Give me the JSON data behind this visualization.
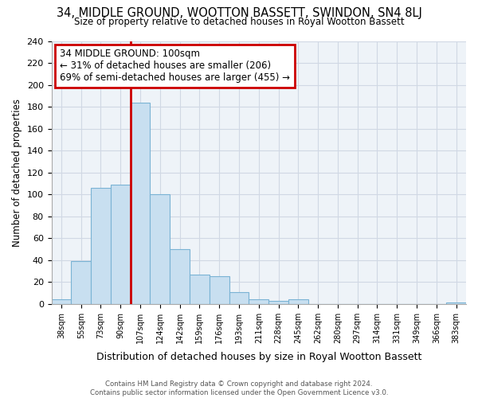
{
  "title": "34, MIDDLE GROUND, WOOTTON BASSETT, SWINDON, SN4 8LJ",
  "subtitle": "Size of property relative to detached houses in Royal Wootton Bassett",
  "xlabel": "Distribution of detached houses by size in Royal Wootton Bassett",
  "ylabel": "Number of detached properties",
  "categories": [
    "38sqm",
    "55sqm",
    "73sqm",
    "90sqm",
    "107sqm",
    "124sqm",
    "142sqm",
    "159sqm",
    "176sqm",
    "193sqm",
    "211sqm",
    "228sqm",
    "245sqm",
    "262sqm",
    "280sqm",
    "297sqm",
    "314sqm",
    "331sqm",
    "349sqm",
    "366sqm",
    "383sqm"
  ],
  "values": [
    4,
    39,
    106,
    109,
    184,
    100,
    50,
    27,
    25,
    11,
    4,
    3,
    4,
    0,
    0,
    0,
    0,
    0,
    0,
    0,
    1
  ],
  "bar_color": "#c8dff0",
  "bar_edge_color": "#7ab3d4",
  "annotation_box_text_line1": "34 MIDDLE GROUND: 100sqm",
  "annotation_box_text_line2": "← 31% of detached houses are smaller (206)",
  "annotation_box_text_line3": "69% of semi-detached houses are larger (455) →",
  "annotation_box_color": "#ffffff",
  "annotation_box_edge_color": "#cc0000",
  "vline_color": "#cc0000",
  "vline_x": 3.5,
  "ylim": [
    0,
    240
  ],
  "yticks": [
    0,
    20,
    40,
    60,
    80,
    100,
    120,
    140,
    160,
    180,
    200,
    220,
    240
  ],
  "footer_line1": "Contains HM Land Registry data © Crown copyright and database right 2024.",
  "footer_line2": "Contains public sector information licensed under the Open Government Licence v3.0.",
  "background_color": "#ffffff",
  "grid_color": "#d0d8e4"
}
